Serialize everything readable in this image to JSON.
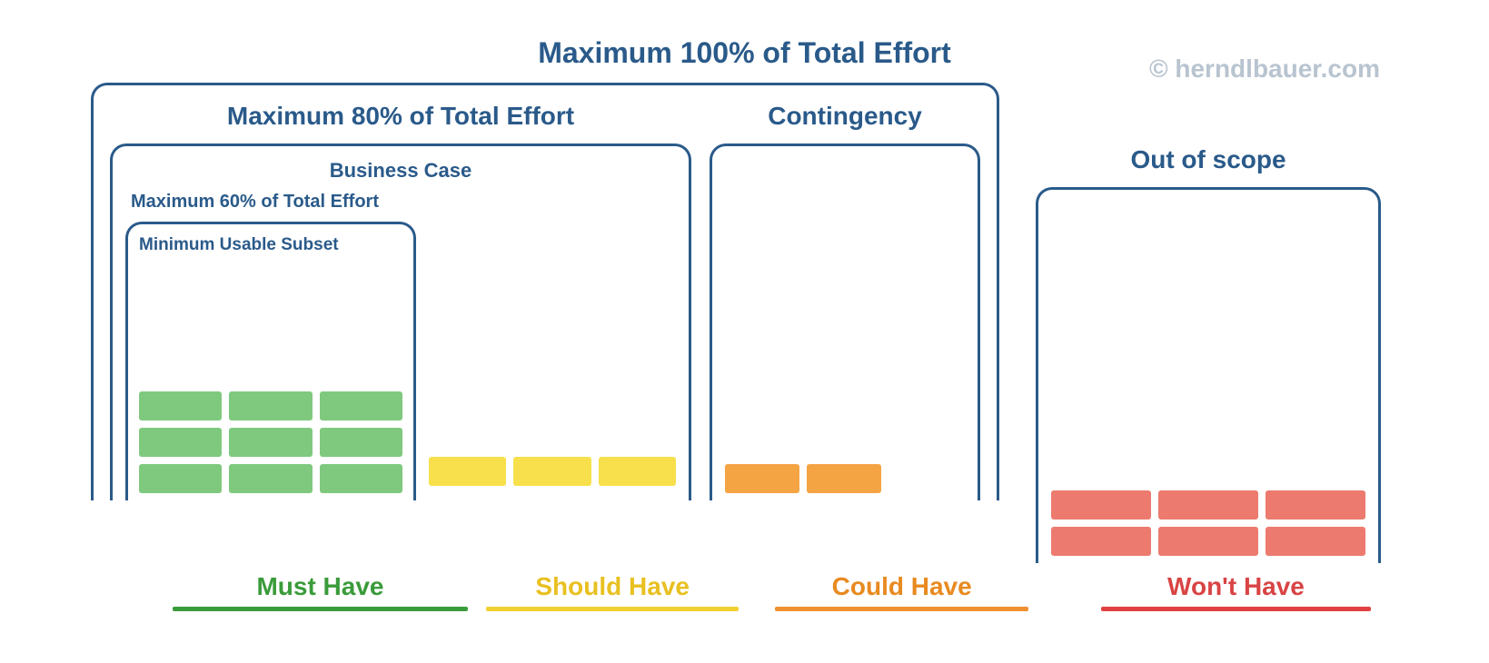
{
  "attribution": "© herndlbauer.com",
  "titles": {
    "hundred": "Maximum 100% of Total Effort",
    "eighty": "Maximum 80% of Total Effort",
    "contingency": "Contingency",
    "out_of_scope": "Out of scope",
    "business_case": "Business Case",
    "sixty": "Maximum 60% of Total Effort",
    "mus": "Minimum Usable Subset"
  },
  "categories": {
    "must": {
      "label": "Must Have",
      "text_color": "#3a9b3a",
      "underline_color": "#3a9b3a",
      "block_color": "#7fc97f",
      "block_count": 9,
      "grid": "3x3"
    },
    "should": {
      "label": "Should Have",
      "text_color": "#e8c020",
      "underline_color": "#f0d030",
      "block_color": "#f7e04b",
      "block_count": 3,
      "grid": "3x1"
    },
    "could": {
      "label": "Could Have",
      "text_color": "#e88a20",
      "underline_color": "#f09030",
      "block_color": "#f5a444",
      "block_count": 2,
      "grid": "2x1"
    },
    "wont": {
      "label": "Won't Have",
      "text_color": "#d94444",
      "underline_color": "#e04040",
      "block_color": "#ec7a6e",
      "block_count": 6,
      "grid": "3x2"
    }
  },
  "colors": {
    "border": "#2a5a8a",
    "text_primary": "#2a5a8a",
    "attribution": "#b8c4d0",
    "background": "#ffffff"
  }
}
